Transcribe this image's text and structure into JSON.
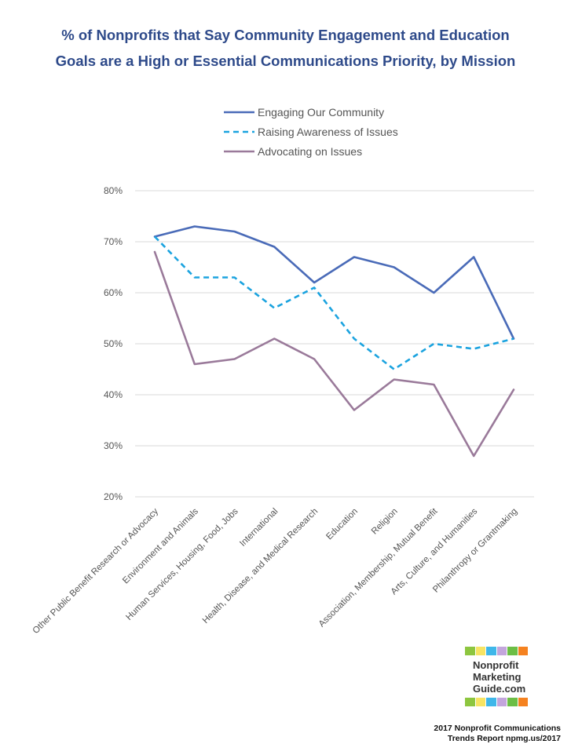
{
  "title_line1": "% of Nonprofits that Say Community Engagement and Education",
  "title_line2": "Goals are a High or Essential Communications Priority, by Mission",
  "colors": {
    "title": "#2e4a8a",
    "engaging": "#4a6bb8",
    "awareness": "#1ba3df",
    "advocating": "#9a7a9a",
    "grid": "#d9d9d9",
    "text": "#555555"
  },
  "chart_data": {
    "type": "line",
    "categories": [
      "Other Public Benefit Research or Advocacy",
      "Environment and Animals",
      "Human Services, Housing, Food, Jobs",
      "International",
      "Health, Disease, and Medical Research",
      "Education",
      "Religion",
      "Association, Membership, Mutual Benefit",
      "Arts, Culture, and Humanities",
      "Philanthropy or Grantmaking"
    ],
    "series": [
      {
        "name": "Engaging Our Community",
        "style": "solid",
        "values": [
          71,
          73,
          72,
          69,
          62,
          67,
          65,
          60,
          67,
          51
        ]
      },
      {
        "name": "Raising Awareness of Issues",
        "style": "dashed",
        "values": [
          71,
          63,
          63,
          57,
          61,
          51,
          45,
          50,
          49,
          51
        ]
      },
      {
        "name": "Advocating on Issues",
        "style": "solid",
        "values": [
          68,
          46,
          47,
          51,
          47,
          37,
          43,
          42,
          28,
          41
        ]
      }
    ],
    "yticks": [
      "80%",
      "70%",
      "60%",
      "50%",
      "40%",
      "30%",
      "20%"
    ],
    "ylim": [
      20,
      80
    ],
    "grid": true,
    "legend": "top-center"
  },
  "logo": {
    "lines": [
      "Nonprofit",
      "Marketing",
      "Guide.com"
    ],
    "colors": [
      "#8dc63f",
      "#f7e463",
      "#3fb7e9",
      "#c3a6dc",
      "#6cbe45",
      "#f58220"
    ]
  },
  "footer": {
    "line1": "2017 Nonprofit Communications",
    "line2": "Trends Report npmg.us/2017"
  }
}
